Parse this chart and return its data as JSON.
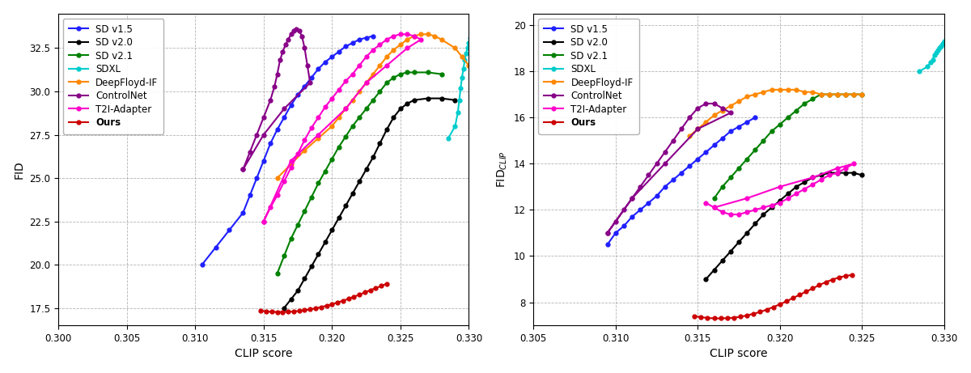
{
  "colors": {
    "SD v1.5": "#1f1fff",
    "SD v2.0": "#000000",
    "SD v2.1": "#008000",
    "SDXL": "#00cccc",
    "DeepFloyd-IF": "#ff8800",
    "ControlNet": "#880088",
    "T2I-Adapter": "#ff00cc",
    "Ours": "#cc0000"
  },
  "legend_labels": [
    "SD v1.5",
    "SD v2.0",
    "SD v2.1",
    "SDXL",
    "DeepFloyd-IF",
    "ControlNet",
    "T2I-Adapter",
    "Ours"
  ],
  "plot1": {
    "xlabel": "CLIP score",
    "ylabel": "FID",
    "xlim": [
      0.3,
      0.33
    ],
    "ylim": [
      16.5,
      34.5
    ],
    "xticks": [
      0.3,
      0.305,
      0.31,
      0.315,
      0.32,
      0.325,
      0.33
    ],
    "yticks": [
      17.5,
      20.0,
      22.5,
      25.0,
      27.5,
      30.0,
      32.5
    ]
  },
  "plot2": {
    "xlabel": "CLIP score",
    "ylabel": "FID$_{CLIP}$",
    "xlim": [
      0.305,
      0.33
    ],
    "ylim": [
      7.0,
      20.5
    ],
    "xticks": [
      0.305,
      0.31,
      0.315,
      0.32,
      0.325,
      0.33
    ],
    "yticks": [
      8,
      10,
      12,
      14,
      16,
      18,
      20
    ]
  },
  "series": {
    "SD v1.5": {
      "plot1": {
        "clip": [
          0.3105,
          0.3115,
          0.3125,
          0.3135,
          0.314,
          0.3145,
          0.315,
          0.3155,
          0.316,
          0.3165,
          0.317,
          0.3175,
          0.318,
          0.3185,
          0.319,
          0.3195,
          0.32,
          0.3205,
          0.321,
          0.3215,
          0.322,
          0.3225,
          0.323
        ],
        "fid": [
          20.0,
          21.0,
          22.0,
          23.0,
          24.0,
          25.0,
          26.0,
          27.0,
          27.8,
          28.5,
          29.2,
          29.8,
          30.3,
          30.8,
          31.3,
          31.7,
          32.0,
          32.3,
          32.6,
          32.8,
          33.0,
          33.1,
          33.2
        ]
      },
      "plot2": {
        "clip": [
          0.3095,
          0.31,
          0.3105,
          0.311,
          0.3115,
          0.312,
          0.3125,
          0.313,
          0.3135,
          0.314,
          0.3145,
          0.315,
          0.3155,
          0.316,
          0.3165,
          0.317,
          0.3175,
          0.318,
          0.3185
        ],
        "fid": [
          10.5,
          11.0,
          11.3,
          11.7,
          12.0,
          12.3,
          12.6,
          13.0,
          13.3,
          13.6,
          13.9,
          14.2,
          14.5,
          14.8,
          15.1,
          15.4,
          15.6,
          15.8,
          16.0
        ]
      }
    },
    "SD v2.0": {
      "plot1": {
        "clip": [
          0.3165,
          0.317,
          0.3175,
          0.318,
          0.3185,
          0.319,
          0.3195,
          0.32,
          0.3205,
          0.321,
          0.3215,
          0.322,
          0.3225,
          0.323,
          0.3235,
          0.324,
          0.3245,
          0.325,
          0.3255,
          0.326,
          0.327,
          0.328,
          0.329
        ],
        "fid": [
          17.5,
          18.0,
          18.5,
          19.2,
          19.9,
          20.6,
          21.3,
          22.0,
          22.7,
          23.4,
          24.1,
          24.8,
          25.5,
          26.2,
          27.0,
          27.8,
          28.5,
          29.0,
          29.3,
          29.5,
          29.6,
          29.6,
          29.5
        ]
      },
      "plot2": {
        "clip": [
          0.3155,
          0.316,
          0.3165,
          0.317,
          0.3175,
          0.318,
          0.3185,
          0.319,
          0.3195,
          0.32,
          0.3205,
          0.321,
          0.3215,
          0.322,
          0.3225,
          0.323,
          0.3235,
          0.324,
          0.3245,
          0.325
        ],
        "fid": [
          9.0,
          9.4,
          9.8,
          10.2,
          10.6,
          11.0,
          11.4,
          11.8,
          12.1,
          12.4,
          12.7,
          13.0,
          13.2,
          13.4,
          13.5,
          13.6,
          13.6,
          13.6,
          13.6,
          13.5
        ]
      }
    },
    "SD v2.1": {
      "plot1": {
        "clip": [
          0.316,
          0.3165,
          0.317,
          0.3175,
          0.318,
          0.3185,
          0.319,
          0.3195,
          0.32,
          0.3205,
          0.321,
          0.3215,
          0.322,
          0.3225,
          0.323,
          0.3235,
          0.324,
          0.3245,
          0.325,
          0.3255,
          0.326,
          0.327,
          0.328
        ],
        "fid": [
          19.5,
          20.5,
          21.5,
          22.3,
          23.1,
          23.9,
          24.7,
          25.4,
          26.1,
          26.8,
          27.4,
          28.0,
          28.5,
          29.0,
          29.5,
          30.0,
          30.5,
          30.8,
          31.0,
          31.1,
          31.1,
          31.1,
          31.0
        ]
      },
      "plot2": {
        "clip": [
          0.316,
          0.3165,
          0.317,
          0.3175,
          0.318,
          0.3185,
          0.319,
          0.3195,
          0.32,
          0.3205,
          0.321,
          0.3215,
          0.322,
          0.3225,
          0.323,
          0.3235,
          0.324,
          0.3245,
          0.325
        ],
        "fid": [
          12.5,
          13.0,
          13.4,
          13.8,
          14.2,
          14.6,
          15.0,
          15.4,
          15.7,
          16.0,
          16.3,
          16.6,
          16.8,
          17.0,
          17.0,
          17.0,
          17.0,
          17.0,
          17.0
        ]
      }
    },
    "SDXL": {
      "plot1": {
        "clip": [
          0.3285,
          0.329,
          0.3292,
          0.3293,
          0.3294,
          0.3295,
          0.3296,
          0.3297,
          0.3298,
          0.3299,
          0.33,
          0.3301,
          0.3302
        ],
        "fid": [
          27.3,
          28.0,
          28.8,
          29.5,
          30.2,
          30.8,
          31.3,
          31.8,
          32.2,
          32.5,
          32.8,
          33.1,
          33.3
        ]
      },
      "plot2": {
        "clip": [
          0.3285,
          0.329,
          0.3292,
          0.3293,
          0.3294,
          0.3295,
          0.3296,
          0.3297,
          0.3298,
          0.3299,
          0.33
        ],
        "fid": [
          18.0,
          18.2,
          18.4,
          18.5,
          18.7,
          18.8,
          18.9,
          19.0,
          19.1,
          19.2,
          19.3
        ]
      }
    },
    "DeepFloyd-IF": {
      "plot1": {
        "clip": [
          0.316,
          0.317,
          0.318,
          0.319,
          0.32,
          0.3205,
          0.321,
          0.3215,
          0.322,
          0.3225,
          0.323,
          0.3235,
          0.324,
          0.3245,
          0.325,
          0.3255,
          0.326,
          0.3265,
          0.327,
          0.3275,
          0.328,
          0.329,
          0.3295,
          0.33
        ],
        "fid": [
          25.0,
          25.8,
          26.6,
          27.3,
          28.0,
          28.5,
          29.0,
          29.5,
          30.0,
          30.5,
          31.0,
          31.5,
          32.0,
          32.4,
          32.7,
          33.0,
          33.2,
          33.3,
          33.3,
          33.2,
          33.0,
          32.5,
          32.0,
          31.5
        ]
      },
      "plot2": {
        "clip": [
          0.3145,
          0.315,
          0.3155,
          0.316,
          0.3165,
          0.317,
          0.3175,
          0.318,
          0.3185,
          0.319,
          0.3195,
          0.32,
          0.3205,
          0.321,
          0.3215,
          0.322,
          0.3225,
          0.323,
          0.3235,
          0.324,
          0.3245,
          0.325
        ],
        "fid": [
          15.2,
          15.5,
          15.8,
          16.1,
          16.3,
          16.5,
          16.7,
          16.9,
          17.0,
          17.1,
          17.2,
          17.2,
          17.2,
          17.2,
          17.1,
          17.1,
          17.0,
          17.0,
          17.0,
          17.0,
          17.0,
          17.0
        ]
      }
    },
    "ControlNet": {
      "plot1": {
        "clip": [
          0.3135,
          0.314,
          0.3145,
          0.315,
          0.3155,
          0.3158,
          0.316,
          0.3162,
          0.3164,
          0.3166,
          0.3168,
          0.317,
          0.3172,
          0.3174,
          0.3176,
          0.3178,
          0.318,
          0.3182,
          0.3184,
          0.3165,
          0.315,
          0.3135
        ],
        "fid": [
          25.5,
          26.5,
          27.5,
          28.5,
          29.5,
          30.3,
          31.0,
          31.8,
          32.3,
          32.7,
          33.0,
          33.3,
          33.5,
          33.6,
          33.5,
          33.2,
          32.5,
          31.5,
          30.5,
          29.0,
          27.5,
          25.5
        ]
      },
      "plot2": {
        "clip": [
          0.3095,
          0.31,
          0.3105,
          0.311,
          0.3115,
          0.312,
          0.3125,
          0.313,
          0.3135,
          0.314,
          0.3145,
          0.315,
          0.3155,
          0.316,
          0.3165,
          0.317,
          0.315,
          0.313,
          0.311,
          0.3095
        ],
        "fid": [
          11.0,
          11.5,
          12.0,
          12.5,
          13.0,
          13.5,
          14.0,
          14.5,
          15.0,
          15.5,
          16.0,
          16.4,
          16.6,
          16.6,
          16.4,
          16.2,
          15.5,
          14.0,
          12.5,
          11.0
        ]
      }
    },
    "T2I-Adapter": {
      "plot1": {
        "clip": [
          0.315,
          0.3155,
          0.316,
          0.3165,
          0.317,
          0.3175,
          0.318,
          0.3185,
          0.319,
          0.3195,
          0.32,
          0.3205,
          0.321,
          0.3215,
          0.322,
          0.3225,
          0.323,
          0.3235,
          0.324,
          0.3245,
          0.325,
          0.3255,
          0.326,
          0.3265,
          0.3255,
          0.324,
          0.3225,
          0.321,
          0.319,
          0.317,
          0.315
        ],
        "fid": [
          22.5,
          23.3,
          24.0,
          24.8,
          25.6,
          26.4,
          27.2,
          27.9,
          28.5,
          29.1,
          29.6,
          30.1,
          30.6,
          31.0,
          31.5,
          32.0,
          32.4,
          32.7,
          33.0,
          33.2,
          33.3,
          33.3,
          33.2,
          33.0,
          32.5,
          31.5,
          30.5,
          29.0,
          27.5,
          26.0,
          22.5
        ]
      },
      "plot2": {
        "clip": [
          0.3155,
          0.316,
          0.3165,
          0.317,
          0.3175,
          0.318,
          0.3185,
          0.319,
          0.3195,
          0.32,
          0.3205,
          0.321,
          0.3215,
          0.322,
          0.3225,
          0.323,
          0.3235,
          0.324,
          0.3245,
          0.3235,
          0.322,
          0.32,
          0.318,
          0.316
        ],
        "fid": [
          12.3,
          12.1,
          11.9,
          11.8,
          11.8,
          11.9,
          12.0,
          12.1,
          12.2,
          12.3,
          12.5,
          12.7,
          12.9,
          13.1,
          13.3,
          13.5,
          13.6,
          13.8,
          14.0,
          13.8,
          13.4,
          13.0,
          12.5,
          12.1
        ]
      }
    },
    "Ours": {
      "plot1": {
        "clip": [
          0.3148,
          0.3152,
          0.3156,
          0.316,
          0.3164,
          0.3168,
          0.3172,
          0.3176,
          0.318,
          0.3184,
          0.3188,
          0.3192,
          0.3196,
          0.32,
          0.3204,
          0.3208,
          0.3212,
          0.3216,
          0.322,
          0.3224,
          0.3228,
          0.3232,
          0.3236,
          0.324
        ],
        "fid": [
          17.35,
          17.3,
          17.28,
          17.27,
          17.27,
          17.28,
          17.3,
          17.33,
          17.37,
          17.42,
          17.48,
          17.55,
          17.63,
          17.72,
          17.82,
          17.92,
          18.03,
          18.15,
          18.27,
          18.4,
          18.53,
          18.65,
          18.77,
          18.9
        ]
      },
      "plot2": {
        "clip": [
          0.3148,
          0.3152,
          0.3156,
          0.316,
          0.3164,
          0.3168,
          0.3172,
          0.3176,
          0.318,
          0.3184,
          0.3188,
          0.3192,
          0.3196,
          0.32,
          0.3204,
          0.3208,
          0.3212,
          0.3216,
          0.322,
          0.3224,
          0.3228,
          0.3232,
          0.3236,
          0.324,
          0.3244
        ],
        "fid": [
          7.4,
          7.35,
          7.32,
          7.3,
          7.3,
          7.31,
          7.33,
          7.37,
          7.43,
          7.5,
          7.58,
          7.68,
          7.79,
          7.91,
          8.04,
          8.18,
          8.32,
          8.46,
          8.6,
          8.74,
          8.87,
          8.98,
          9.07,
          9.14,
          9.18
        ]
      }
    }
  }
}
